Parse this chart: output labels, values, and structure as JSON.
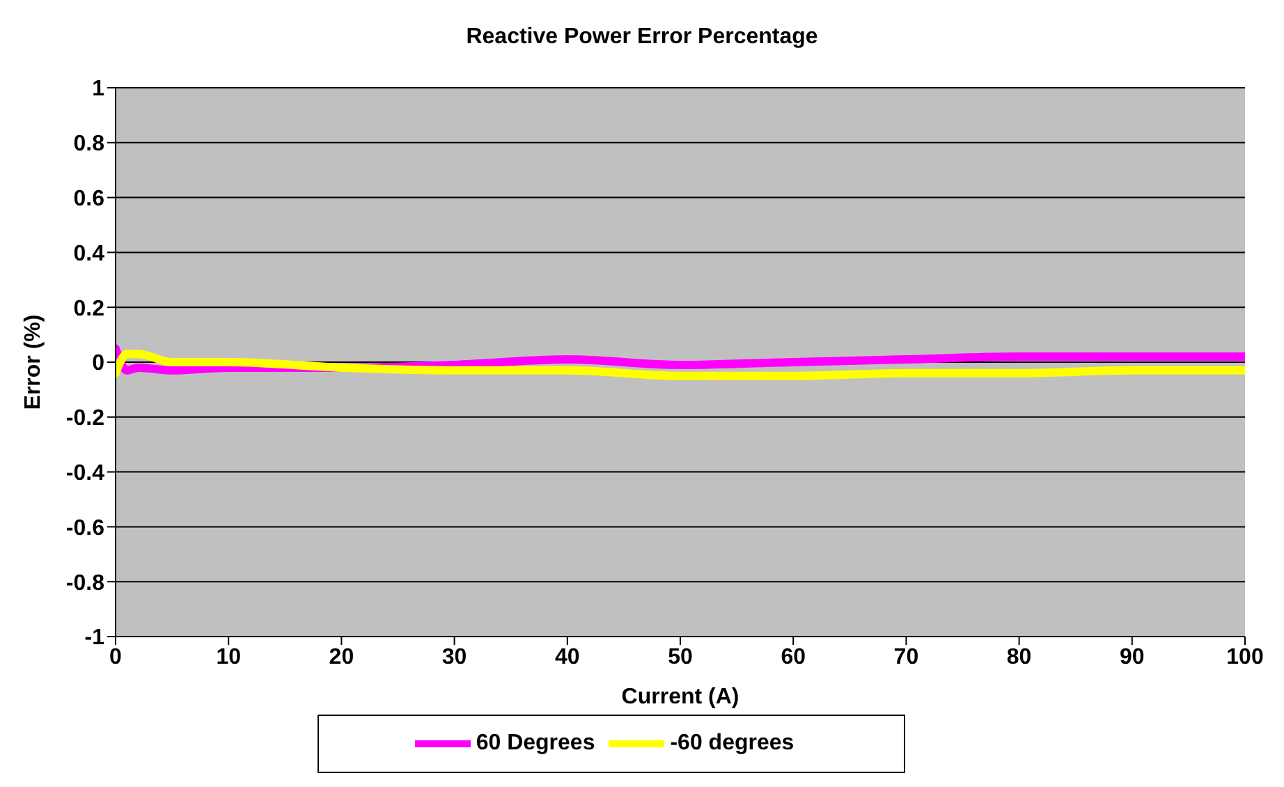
{
  "chart_data": {
    "type": "line",
    "title": "Reactive Power Error Percentage",
    "xlabel": "Current (A)",
    "ylabel": "Error (%)",
    "x": [
      0,
      1,
      2,
      5,
      10,
      20,
      30,
      40,
      50,
      60,
      70,
      80,
      90,
      100
    ],
    "series": [
      {
        "name": "60 Degrees",
        "color": "#ff00ff",
        "values": [
          0.05,
          -0.03,
          -0.02,
          -0.03,
          -0.02,
          -0.02,
          -0.01,
          0.01,
          -0.01,
          0,
          0.01,
          0.02,
          0.02,
          0.02
        ]
      },
      {
        "name": "-60 degrees",
        "color": "#ffff00",
        "values": [
          -0.04,
          0.03,
          0.03,
          0,
          0,
          -0.02,
          -0.03,
          -0.03,
          -0.05,
          -0.05,
          -0.04,
          -0.04,
          -0.03,
          -0.03
        ]
      }
    ],
    "xlim": [
      0,
      100
    ],
    "xticks": [
      0,
      10,
      20,
      30,
      40,
      50,
      60,
      70,
      80,
      90,
      100
    ],
    "ylim": [
      -1,
      1
    ],
    "yticks": [
      -1,
      -0.8,
      -0.6,
      -0.4,
      -0.2,
      0,
      0.2,
      0.4,
      0.6,
      0.8,
      1
    ],
    "grid": "y",
    "legend": "bottom",
    "marker": "none",
    "line_style": "solid"
  }
}
